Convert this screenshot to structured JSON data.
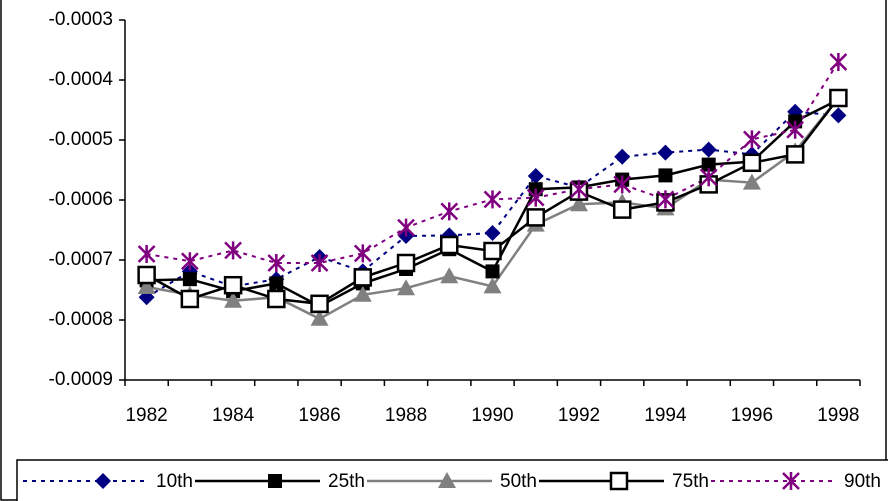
{
  "chart_data": {
    "type": "line",
    "categories": [
      "1982",
      null,
      "1984",
      null,
      "1986",
      null,
      "1988",
      null,
      "1990",
      null,
      "1992",
      null,
      "1994",
      null,
      "1996",
      null,
      "1998"
    ],
    "ylim": [
      -0.0009,
      -0.0003
    ],
    "yticks": [
      -0.0009,
      -0.0008,
      -0.0007,
      -0.0006,
      -0.0005,
      -0.0004,
      -0.0003
    ],
    "legend": "bottom",
    "series": [
      {
        "name": "10th",
        "color": "#000080",
        "marker": "diamond",
        "dash": true,
        "values": [
          -0.000762,
          -0.000719,
          -0.000744,
          -0.000732,
          -0.000695,
          -0.000719,
          -0.00066,
          -0.000659,
          -0.000655,
          -0.00056,
          -0.000579,
          -0.000528,
          -0.000521,
          -0.000516,
          -0.000524,
          -0.000453,
          -0.000459
        ]
      },
      {
        "name": "25th",
        "color": "#000000",
        "marker": "square",
        "dash": false,
        "values": [
          -0.000734,
          -0.000732,
          -0.000752,
          -0.000739,
          -0.000777,
          -0.000739,
          -0.000715,
          -0.000682,
          -0.000719,
          -0.000582,
          -0.000579,
          -0.000566,
          -0.000559,
          -0.000541,
          -0.000536,
          -0.000469,
          -0.000433
        ]
      },
      {
        "name": "50th",
        "color": "#808080",
        "marker": "triangle",
        "dash": false,
        "values": [
          -0.000745,
          -0.000758,
          -0.000768,
          -0.000762,
          -0.000798,
          -0.000758,
          -0.000747,
          -0.000727,
          -0.000744,
          -0.000641,
          -0.000607,
          -0.000604,
          -0.000614,
          -0.000566,
          -0.000571,
          -0.000519,
          -0.00043
        ]
      },
      {
        "name": "75th",
        "color": "#000000",
        "marker": "open-square",
        "dash": false,
        "values": [
          -0.000725,
          -0.000765,
          -0.000742,
          -0.000765,
          -0.000773,
          -0.000729,
          -0.000705,
          -0.000675,
          -0.000685,
          -0.000629,
          -0.000586,
          -0.000616,
          -0.000604,
          -0.000574,
          -0.000538,
          -0.000524,
          -0.00043
        ]
      },
      {
        "name": "90th",
        "color": "#800080",
        "marker": "star",
        "dash": true,
        "values": [
          -0.00069,
          -0.000702,
          -0.000684,
          -0.000705,
          -0.000705,
          -0.000689,
          -0.000646,
          -0.000619,
          -0.000599,
          -0.000596,
          -0.000582,
          -0.000574,
          -0.000599,
          -0.000562,
          -0.000499,
          -0.000483,
          -0.00037
        ]
      }
    ]
  }
}
